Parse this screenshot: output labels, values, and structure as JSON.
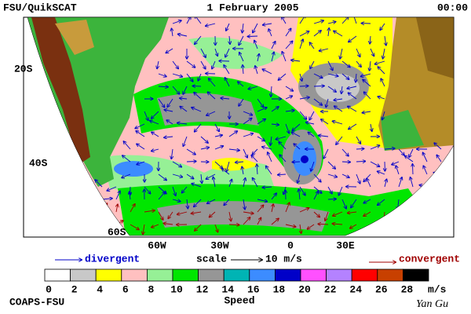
{
  "header": {
    "title": "FSU/QuikSCAT",
    "date": "1 February 2005",
    "time": "00:00"
  },
  "map": {
    "lat_labels": [
      "20S",
      "40S",
      "60S"
    ],
    "lon_labels": [
      "60W",
      "30W",
      "0",
      "30E"
    ]
  },
  "legend": {
    "divergent": "divergent",
    "scale": "scale",
    "scale_value": "10 m/s",
    "convergent": "convergent"
  },
  "colorbar": {
    "colors": [
      "#ffffff",
      "#c8c8c8",
      "#ffff00",
      "#ffc0c0",
      "#96f096",
      "#00e600",
      "#969696",
      "#00b4b4",
      "#3c8cff",
      "#0000c8",
      "#ff50ff",
      "#b482ff",
      "#ff0000",
      "#c84000",
      "#000000"
    ],
    "labels": [
      0,
      2,
      4,
      6,
      8,
      10,
      12,
      14,
      16,
      18,
      20,
      22,
      24,
      26,
      28
    ],
    "unit": "m/s",
    "title": "Speed"
  },
  "footer": {
    "credit": "COAPS-FSU",
    "author": "Yan Gu"
  }
}
